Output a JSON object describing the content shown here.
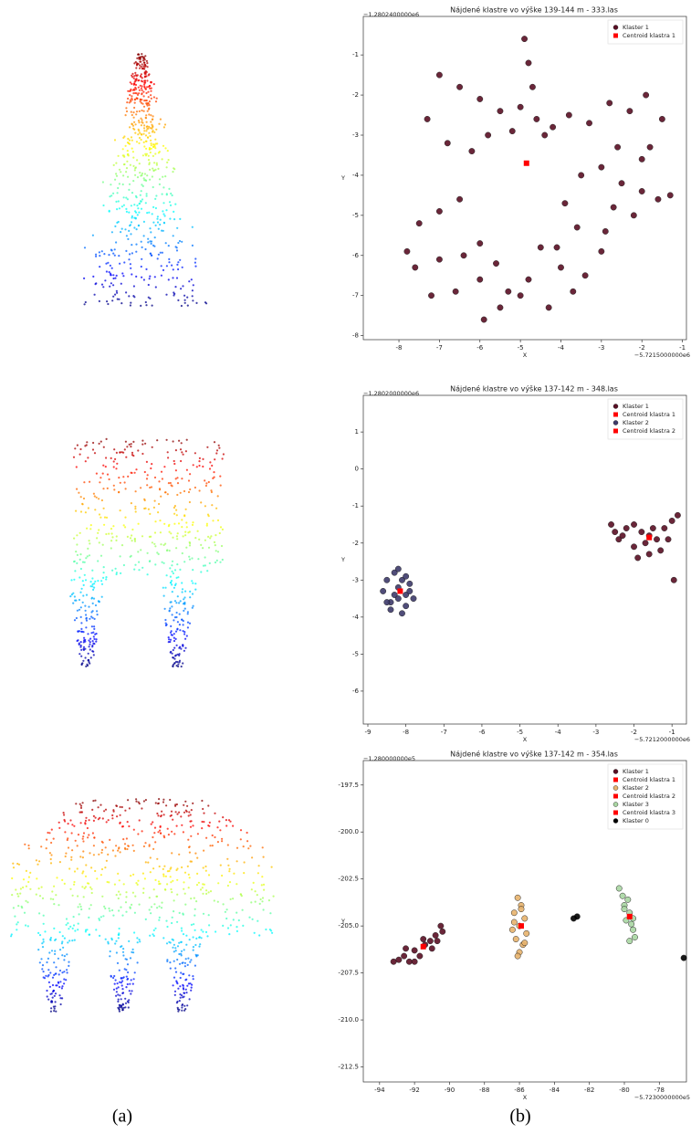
{
  "chart_data": [
    {
      "type": "scatter",
      "title": "Nájdené klastre vo výške 139-144 m - 333.las",
      "y_offset": "−1.2802400000e6",
      "x_offset": "−5.7215000000e6",
      "x_label": "X",
      "y_label": "Y",
      "xlim": [
        -8.88,
        -0.9
      ],
      "ylim": [
        -8.1,
        -0.04
      ],
      "xticks": [
        -8,
        -7,
        -6,
        -5,
        -4,
        -3,
        -2,
        -1
      ],
      "yticks": [
        -8,
        -7,
        -6,
        -5,
        -4,
        -3,
        -2,
        -1
      ],
      "legend": "upper right",
      "series": [
        {
          "name": "Klaster 1",
          "color": "#5a0f24",
          "marker": "o",
          "x": [
            -4.9,
            -4.8,
            -4.7,
            -5.0,
            -4.6,
            -5.2,
            -4.4,
            -5.5,
            -6.0,
            -6.5,
            -7.0,
            -7.3,
            -6.8,
            -6.2,
            -5.8,
            -4.2,
            -3.8,
            -3.3,
            -2.8,
            -2.3,
            -1.9,
            -1.5,
            -2.0,
            -2.6,
            -3.0,
            -2.5,
            -2.0,
            -1.6,
            -1.3,
            -2.2,
            -2.9,
            -3.5,
            -3.9,
            -7.8,
            -7.5,
            -7.0,
            -6.5,
            -6.0,
            -7.6,
            -7.0,
            -6.4,
            -6.0,
            -5.6,
            -5.3,
            -5.5,
            -5.0,
            -4.8,
            -4.3,
            -4.0,
            -3.7,
            -4.1,
            -3.4,
            -3.0,
            -6.6,
            -7.2,
            -5.9,
            -4.5,
            -3.6,
            -2.7,
            -1.8
          ],
          "y": [
            -0.6,
            -1.2,
            -1.8,
            -2.3,
            -2.6,
            -2.9,
            -3.0,
            -2.4,
            -2.1,
            -1.8,
            -1.5,
            -2.6,
            -3.2,
            -3.4,
            -3.0,
            -2.8,
            -2.5,
            -2.7,
            -2.2,
            -2.4,
            -2.0,
            -2.6,
            -3.6,
            -3.3,
            -3.8,
            -4.2,
            -4.4,
            -4.6,
            -4.5,
            -5.0,
            -5.4,
            -4.0,
            -4.7,
            -5.9,
            -5.2,
            -4.9,
            -4.6,
            -5.7,
            -6.3,
            -6.1,
            -6.0,
            -6.6,
            -6.2,
            -6.9,
            -7.3,
            -7.0,
            -6.6,
            -7.3,
            -6.3,
            -6.9,
            -5.8,
            -6.5,
            -5.9,
            -6.9,
            -7.0,
            -7.6,
            -5.8,
            -5.3,
            -4.8,
            -3.3
          ]
        },
        {
          "name": "Centroid klastra 1",
          "color": "#ff0000",
          "marker": "s",
          "x": [
            -4.85
          ],
          "y": [
            -3.7
          ]
        }
      ]
    },
    {
      "type": "scatter",
      "title": "Nájdené klastre vo výške 137-142 m - 348.las",
      "y_offset": "−1.2802000000e6",
      "x_offset": "−5.7212000000e6",
      "x_label": "X",
      "y_label": "Y",
      "xlim": [
        -9.12,
        -0.62
      ],
      "ylim": [
        -6.89,
        1.99
      ],
      "xticks": [
        -9,
        -8,
        -7,
        -6,
        -5,
        -4,
        -3,
        -2,
        -1
      ],
      "yticks": [
        1,
        0,
        -1,
        -2,
        -3,
        -4,
        -5,
        -6
      ],
      "legend": "upper right",
      "series": [
        {
          "name": "Klaster 1",
          "color": "#5a0f24",
          "marker": "o",
          "x": [
            -2.6,
            -2.4,
            -2.2,
            -2.0,
            -1.8,
            -1.6,
            -1.4,
            -1.2,
            -1.0,
            -0.85,
            -2.3,
            -2.0,
            -1.7,
            -1.5,
            -1.3,
            -1.9,
            -1.6,
            -1.1,
            -2.5,
            -0.95
          ],
          "y": [
            -1.5,
            -1.9,
            -1.6,
            -2.1,
            -1.7,
            -2.3,
            -1.9,
            -1.6,
            -1.4,
            -1.25,
            -1.8,
            -1.5,
            -2.0,
            -1.6,
            -2.2,
            -2.4,
            -1.8,
            -1.9,
            -1.7,
            -3.0
          ]
        },
        {
          "name": "Centroid klastra 1",
          "color": "#ff0000",
          "marker": "s",
          "x": [
            -1.6
          ],
          "y": [
            -1.85
          ]
        },
        {
          "name": "Klaster 2",
          "color": "#3e3a6b",
          "marker": "o",
          "x": [
            -8.6,
            -8.5,
            -8.4,
            -8.3,
            -8.2,
            -8.1,
            -8.0,
            -7.9,
            -7.8,
            -8.4,
            -8.2,
            -8.0,
            -8.3,
            -8.1,
            -7.9,
            -8.5,
            -8.2,
            -8.0
          ],
          "y": [
            -3.3,
            -3.0,
            -3.6,
            -2.8,
            -3.2,
            -3.9,
            -3.4,
            -3.1,
            -3.5,
            -3.8,
            -2.7,
            -3.7,
            -3.4,
            -3.0,
            -3.3,
            -3.6,
            -3.5,
            -2.9
          ]
        },
        {
          "name": "Centroid klastra 2",
          "color": "#ff0000",
          "marker": "s",
          "x": [
            -8.15
          ],
          "y": [
            -3.3
          ]
        }
      ]
    },
    {
      "type": "scatter",
      "title": "Nájdené klastre vo výške 137-142 m - 354.las",
      "y_offset": "−1.280000000e5",
      "x_offset": "−5.7230000000e5",
      "x_label": "X",
      "y_label": "Y",
      "xlim": [
        -94.93,
        -76.45
      ],
      "ylim": [
        -213.3,
        -196.2
      ],
      "xticks": [
        -94,
        -92,
        -90,
        -88,
        -86,
        -84,
        -82,
        -80,
        -78
      ],
      "yticks": [
        -197.5,
        {
          "value": -200,
          "label": "-200.0"
        },
        -202.5,
        {
          "value": -205,
          "label": "-205.0"
        },
        -207.5,
        {
          "value": -210,
          "label": "-210.0"
        },
        -212.5
      ],
      "legend": "upper right",
      "series": [
        {
          "name": "Klaster 1",
          "color": "#5a0f24",
          "marker": "o",
          "x": [
            -93.2,
            -92.9,
            -92.6,
            -92.3,
            -92.0,
            -91.7,
            -91.4,
            -91.1,
            -90.8,
            -90.5,
            -92.5,
            -92.0,
            -91.5,
            -91.0,
            -90.7,
            -90.4
          ],
          "y": [
            -206.9,
            -206.8,
            -206.6,
            -206.9,
            -206.3,
            -206.6,
            -206.0,
            -205.8,
            -205.5,
            -205.0,
            -206.2,
            -206.9,
            -205.7,
            -206.2,
            -205.8,
            -205.3
          ]
        },
        {
          "name": "Centroid klastra 1",
          "color": "#ff0000",
          "marker": "s",
          "x": [
            -91.5
          ],
          "y": [
            -206.1
          ]
        },
        {
          "name": "Klaster 2",
          "color": "#e7b36d",
          "marker": "o",
          "x": [
            -86.1,
            -85.9,
            -86.3,
            -85.7,
            -86.0,
            -86.4,
            -85.6,
            -86.2,
            -85.8,
            -86.0,
            -86.3,
            -85.7,
            -86.1,
            -85.9
          ],
          "y": [
            -203.5,
            -203.9,
            -204.3,
            -204.6,
            -205.0,
            -205.2,
            -205.4,
            -205.7,
            -206.0,
            -206.4,
            -204.8,
            -205.9,
            -206.6,
            -204.1
          ]
        },
        {
          "name": "Centroid klastra 2",
          "color": "#ff0000",
          "marker": "s",
          "x": [
            -85.9
          ],
          "y": [
            -205.0
          ]
        },
        {
          "name": "Klaster 3",
          "color": "#a9d6a2",
          "marker": "o",
          "x": [
            -80.3,
            -80.1,
            -80.0,
            -79.8,
            -79.7,
            -79.9,
            -79.6,
            -79.5,
            -79.4,
            -79.7,
            -80.0,
            -79.5
          ],
          "y": [
            -203.0,
            -203.4,
            -203.9,
            -203.6,
            -204.3,
            -204.7,
            -204.9,
            -205.2,
            -205.6,
            -205.8,
            -204.1,
            -204.6
          ]
        },
        {
          "name": "Centroid klastra 3",
          "color": "#ff0000",
          "marker": "s",
          "x": [
            -79.7
          ],
          "y": [
            -204.5
          ]
        },
        {
          "name": "Klaster 0",
          "color": "#000000",
          "marker": "o",
          "x": [
            -82.9,
            -82.7,
            -76.6
          ],
          "y": [
            -204.6,
            -204.5,
            -206.7
          ]
        }
      ]
    }
  ],
  "captions": [
    "(a)",
    "(b)"
  ]
}
